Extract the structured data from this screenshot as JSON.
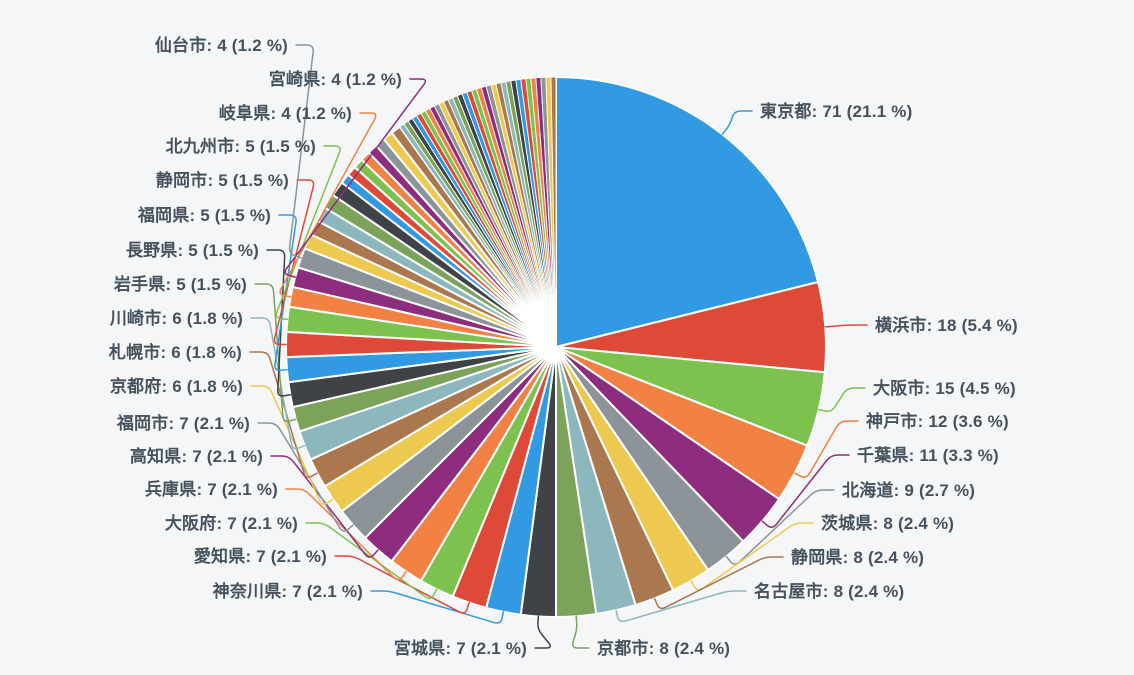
{
  "page": {
    "background": "#f5f6f8",
    "label_color": "#46535f"
  },
  "chart_data": {
    "type": "pie",
    "title": "",
    "total": 336,
    "direction": "clockwise",
    "start_angle_deg": 0,
    "legend_position": "none",
    "label_format": "{label}: {value} ({pct} %)",
    "palette": [
      "#3299e3",
      "#df4a38",
      "#7dc24e",
      "#f28144",
      "#8e2c7e",
      "#8c9399",
      "#eec94f",
      "#aa774e",
      "#8cb8bd",
      "#7ca35a",
      "#3f4347"
    ],
    "slices": [
      {
        "label": "東京都",
        "value": 71,
        "pct": "21.1",
        "color": "#3299e3"
      },
      {
        "label": "横浜市",
        "value": 18,
        "pct": "5.4",
        "color": "#df4a38"
      },
      {
        "label": "大阪市",
        "value": 15,
        "pct": "4.5",
        "color": "#7dc24e"
      },
      {
        "label": "神戸市",
        "value": 12,
        "pct": "3.6",
        "color": "#f28144"
      },
      {
        "label": "千葉県",
        "value": 11,
        "pct": "3.3",
        "color": "#8e2c7e"
      },
      {
        "label": "北海道",
        "value": 9,
        "pct": "2.7",
        "color": "#8c9399"
      },
      {
        "label": "茨城県",
        "value": 8,
        "pct": "2.4",
        "color": "#eec94f"
      },
      {
        "label": "静岡県",
        "value": 8,
        "pct": "2.4",
        "color": "#aa774e"
      },
      {
        "label": "名古屋市",
        "value": 8,
        "pct": "2.4",
        "color": "#8cb8bd"
      },
      {
        "label": "京都市",
        "value": 8,
        "pct": "2.4",
        "color": "#7ca35a"
      },
      {
        "label": "宮城県",
        "value": 7,
        "pct": "2.1",
        "color": "#3f4347"
      },
      {
        "label": "神奈川県",
        "value": 7,
        "pct": "2.1",
        "color": "#3299e3"
      },
      {
        "label": "愛知県",
        "value": 7,
        "pct": "2.1",
        "color": "#df4a38"
      },
      {
        "label": "大阪府",
        "value": 7,
        "pct": "2.1",
        "color": "#7dc24e"
      },
      {
        "label": "兵庫県",
        "value": 7,
        "pct": "2.1",
        "color": "#f28144"
      },
      {
        "label": "高知県",
        "value": 7,
        "pct": "2.1",
        "color": "#8e2c7e"
      },
      {
        "label": "福岡市",
        "value": 7,
        "pct": "2.1",
        "color": "#8c9399"
      },
      {
        "label": "京都府",
        "value": 6,
        "pct": "1.8",
        "color": "#eec94f"
      },
      {
        "label": "札幌市",
        "value": 6,
        "pct": "1.8",
        "color": "#aa774e"
      },
      {
        "label": "川崎市",
        "value": 6,
        "pct": "1.8",
        "color": "#8cb8bd"
      },
      {
        "label": "岩手県",
        "value": 5,
        "pct": "1.5",
        "color": "#7ca35a"
      },
      {
        "label": "長野県",
        "value": 5,
        "pct": "1.5",
        "color": "#3f4347"
      },
      {
        "label": "福岡県",
        "value": 5,
        "pct": "1.5",
        "color": "#3299e3"
      },
      {
        "label": "静岡市",
        "value": 5,
        "pct": "1.5",
        "color": "#df4a38"
      },
      {
        "label": "北九州市",
        "value": 5,
        "pct": "1.5",
        "color": "#7dc24e"
      },
      {
        "label": "岐阜県",
        "value": 4,
        "pct": "1.2",
        "color": "#f28144"
      },
      {
        "label": "宮崎県",
        "value": 4,
        "pct": "1.2",
        "color": "#8e2c7e"
      },
      {
        "label": "仙台市",
        "value": 4,
        "pct": "1.2",
        "color": "#8c9399"
      }
    ],
    "unlabeled_remainder": {
      "total_value": 64,
      "estimated_values": [
        3,
        3,
        3,
        3,
        3,
        2,
        2,
        2,
        2,
        2,
        2,
        2,
        2,
        1,
        1,
        1,
        1,
        1,
        1,
        1,
        1,
        1,
        1,
        1,
        1,
        1,
        1,
        1,
        1,
        1,
        1,
        1,
        1,
        1,
        1,
        1,
        1,
        1,
        1,
        1,
        1,
        1,
        1,
        1,
        1,
        1
      ]
    }
  }
}
